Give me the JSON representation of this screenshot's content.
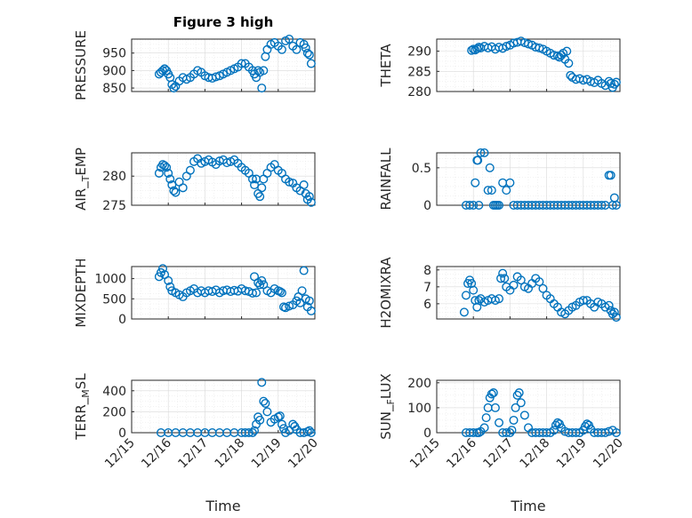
{
  "figure": {
    "title": "Figure 3 high",
    "xlabel": "Time",
    "marker_color": "#0072BD",
    "x_ticks": [
      "12/15",
      "12/16",
      "12/17",
      "12/18",
      "12/19",
      "12/20"
    ]
  },
  "chart_data": [
    {
      "type": "scatter",
      "ylabel": "PRESSURE",
      "ylim": [
        840,
        990
      ],
      "yticks": [
        850,
        900,
        950
      ],
      "series": [
        {
          "x": [
            15.75,
            15.8,
            15.85,
            15.9,
            15.95,
            16.0,
            16.05,
            16.1,
            16.15,
            16.2,
            16.3,
            16.4,
            16.5,
            16.6,
            16.7,
            16.8,
            16.9,
            17.0,
            17.1,
            17.2,
            17.3,
            17.4,
            17.5,
            17.6,
            17.7,
            17.8,
            17.9,
            18.0,
            18.1,
            18.2,
            18.3,
            18.35,
            18.4,
            18.45,
            18.5,
            18.55,
            18.6,
            18.65,
            18.7,
            18.8,
            18.9,
            19.0,
            19.1,
            19.2,
            19.3,
            19.4,
            19.5,
            19.6,
            19.7,
            19.75,
            19.8,
            19.85,
            19.9
          ],
          "y": [
            890,
            895,
            900,
            905,
            900,
            890,
            880,
            860,
            850,
            855,
            870,
            880,
            875,
            880,
            890,
            900,
            895,
            885,
            880,
            878,
            882,
            885,
            890,
            895,
            900,
            905,
            910,
            920,
            920,
            910,
            900,
            890,
            880,
            900,
            895,
            850,
            900,
            940,
            960,
            975,
            980,
            970,
            960,
            985,
            990,
            970,
            960,
            980,
            975,
            965,
            950,
            945,
            920
          ]
        }
      ]
    },
    {
      "type": "scatter",
      "ylabel": "THETA",
      "ylim": [
        280,
        293
      ],
      "yticks": [
        280,
        285,
        290
      ],
      "series": [
        {
          "x": [
            15.95,
            16.0,
            16.05,
            16.1,
            16.15,
            16.2,
            16.3,
            16.4,
            16.5,
            16.6,
            16.7,
            16.8,
            16.9,
            17.0,
            17.1,
            17.2,
            17.3,
            17.4,
            17.5,
            17.6,
            17.7,
            17.8,
            17.9,
            18.0,
            18.1,
            18.2,
            18.3,
            18.35,
            18.4,
            18.45,
            18.5,
            18.55,
            18.6,
            18.65,
            18.7,
            18.8,
            18.9,
            19.0,
            19.1,
            19.2,
            19.3,
            19.4,
            19.5,
            19.6,
            19.7,
            19.75,
            19.8,
            19.85,
            19.9
          ],
          "y": [
            290.2,
            290.5,
            290.3,
            290.6,
            291,
            290.8,
            291.2,
            290.8,
            291.1,
            290.5,
            291,
            290.7,
            291.2,
            291.5,
            292,
            292.2,
            292.5,
            292.1,
            291.8,
            291.5,
            291,
            290.8,
            290.5,
            290,
            289.5,
            289,
            288.8,
            288.5,
            289,
            289.5,
            288,
            290,
            287,
            284,
            283.5,
            283,
            283.2,
            282.8,
            283,
            282.5,
            282.2,
            282.8,
            282,
            281.5,
            282.5,
            282,
            281,
            281.8,
            282.3
          ]
        }
      ]
    },
    {
      "type": "scatter",
      "ylabel": "AIR_TEMP",
      "ylim": [
        275,
        284
      ],
      "yticks": [
        275,
        280
      ],
      "series": [
        {
          "x": [
            15.75,
            15.8,
            15.85,
            15.9,
            15.95,
            16.0,
            16.05,
            16.1,
            16.15,
            16.2,
            16.3,
            16.4,
            16.5,
            16.6,
            16.7,
            16.8,
            16.9,
            17.0,
            17.1,
            17.2,
            17.3,
            17.4,
            17.5,
            17.6,
            17.7,
            17.8,
            17.9,
            18.0,
            18.1,
            18.2,
            18.3,
            18.35,
            18.4,
            18.45,
            18.5,
            18.55,
            18.6,
            18.7,
            18.8,
            18.9,
            19.0,
            19.1,
            19.2,
            19.3,
            19.4,
            19.5,
            19.6,
            19.7,
            19.75,
            19.8,
            19.85,
            19.9
          ],
          "y": [
            280.5,
            281.5,
            282,
            281.8,
            281.5,
            280.5,
            279.5,
            278.5,
            277.5,
            277.2,
            279,
            278,
            280,
            281,
            282.5,
            283,
            282.2,
            282.5,
            282.8,
            282.4,
            282,
            282.6,
            282.8,
            282.3,
            282.5,
            282.8,
            282.2,
            281.5,
            281,
            280.5,
            279.5,
            278.5,
            279.5,
            277,
            276.5,
            278,
            279.5,
            280.5,
            281.5,
            282,
            281,
            280.5,
            279.5,
            279,
            278.8,
            278,
            277.5,
            278.5,
            277,
            276,
            276.5,
            275.5
          ]
        }
      ]
    },
    {
      "type": "scatter",
      "ylabel": "RAINFALL",
      "ylim": [
        0,
        0.7
      ],
      "yticks": [
        0,
        0.5
      ],
      "series": [
        {
          "x": [
            15.8,
            15.9,
            16.0,
            16.05,
            16.1,
            16.12,
            16.15,
            16.2,
            16.3,
            16.4,
            16.45,
            16.5,
            16.55,
            16.6,
            16.65,
            16.7,
            16.8,
            16.9,
            17.0,
            17.1,
            17.2,
            17.3,
            17.4,
            17.5,
            17.6,
            17.7,
            17.8,
            17.9,
            18.0,
            18.1,
            18.2,
            18.3,
            18.4,
            18.5,
            18.6,
            18.7,
            18.8,
            18.9,
            19.0,
            19.1,
            19.2,
            19.3,
            19.4,
            19.5,
            19.6,
            19.7,
            19.75,
            19.8,
            19.85,
            19.9
          ],
          "y": [
            0,
            0,
            0,
            0.3,
            0.6,
            0.6,
            0,
            0.7,
            0.7,
            0.2,
            0.5,
            0.2,
            0,
            0,
            0,
            0,
            0.3,
            0.2,
            0.3,
            0,
            0,
            0,
            0,
            0,
            0,
            0,
            0,
            0,
            0,
            0,
            0,
            0,
            0,
            0,
            0,
            0,
            0,
            0,
            0,
            0,
            0,
            0,
            0,
            0,
            0,
            0.4,
            0.4,
            0,
            0.1,
            0
          ]
        }
      ]
    },
    {
      "type": "scatter",
      "ylabel": "MIXDEPTH",
      "ylim": [
        0,
        1300
      ],
      "yticks": [
        0,
        500,
        1000
      ],
      "series": [
        {
          "x": [
            15.75,
            15.8,
            15.85,
            15.9,
            16.0,
            16.05,
            16.1,
            16.2,
            16.3,
            16.4,
            16.5,
            16.6,
            16.7,
            16.8,
            16.9,
            17.0,
            17.1,
            17.2,
            17.3,
            17.4,
            17.5,
            17.6,
            17.7,
            17.8,
            17.9,
            18.0,
            18.1,
            18.2,
            18.3,
            18.35,
            18.4,
            18.45,
            18.5,
            18.55,
            18.6,
            18.7,
            18.8,
            18.9,
            19.0,
            19.05,
            19.1,
            19.15,
            19.2,
            19.3,
            19.4,
            19.5,
            19.55,
            19.6,
            19.65,
            19.7,
            19.75,
            19.8,
            19.85,
            19.9
          ],
          "y": [
            1050,
            1150,
            1250,
            1100,
            950,
            800,
            700,
            650,
            600,
            550,
            650,
            700,
            750,
            650,
            700,
            650,
            700,
            680,
            720,
            650,
            700,
            720,
            680,
            710,
            690,
            750,
            700,
            680,
            640,
            1050,
            650,
            900,
            850,
            950,
            850,
            700,
            650,
            750,
            700,
            680,
            650,
            300,
            280,
            320,
            350,
            450,
            550,
            400,
            700,
            1200,
            500,
            300,
            450,
            200
          ]
        }
      ]
    },
    {
      "type": "scatter",
      "ylabel": "H2OMIXRA",
      "ylim": [
        5.1,
        8.2
      ],
      "yticks": [
        6,
        7,
        8
      ],
      "series": [
        {
          "x": [
            15.75,
            15.8,
            15.85,
            15.9,
            15.95,
            16.0,
            16.05,
            16.1,
            16.15,
            16.2,
            16.3,
            16.4,
            16.5,
            16.6,
            16.7,
            16.75,
            16.8,
            16.85,
            16.9,
            17.0,
            17.1,
            17.2,
            17.3,
            17.4,
            17.5,
            17.6,
            17.7,
            17.8,
            17.9,
            18.0,
            18.1,
            18.2,
            18.3,
            18.4,
            18.5,
            18.6,
            18.7,
            18.8,
            18.9,
            19.0,
            19.1,
            19.2,
            19.3,
            19.4,
            19.5,
            19.6,
            19.7,
            19.75,
            19.8,
            19.85,
            19.9
          ],
          "y": [
            5.5,
            6.5,
            7.2,
            7.4,
            7.2,
            6.8,
            6.2,
            5.8,
            6.2,
            6.3,
            6.1,
            6.2,
            6.3,
            6.2,
            6.3,
            7.5,
            7.8,
            7.5,
            7.0,
            6.8,
            7.1,
            7.6,
            7.4,
            7.0,
            6.9,
            7.2,
            7.5,
            7.3,
            6.9,
            6.5,
            6.3,
            6.0,
            5.8,
            5.5,
            5.4,
            5.6,
            5.8,
            5.9,
            6.1,
            6.2,
            6.2,
            6.0,
            5.8,
            6.1,
            6.0,
            5.8,
            5.9,
            5.6,
            5.4,
            5.5,
            5.2
          ]
        }
      ]
    },
    {
      "type": "scatter",
      "ylabel": "TERR_MSL",
      "ylim": [
        0,
        500
      ],
      "yticks": [
        0,
        200,
        400
      ],
      "series": [
        {
          "x": [
            15.8,
            16.0,
            16.2,
            16.4,
            16.6,
            16.8,
            17.0,
            17.2,
            17.4,
            17.6,
            17.8,
            18.0,
            18.1,
            18.2,
            18.3,
            18.35,
            18.4,
            18.45,
            18.5,
            18.55,
            18.6,
            18.65,
            18.7,
            18.8,
            18.9,
            19.0,
            19.05,
            19.1,
            19.15,
            19.2,
            19.3,
            19.4,
            19.45,
            19.5,
            19.6,
            19.7,
            19.8,
            19.85,
            19.9
          ],
          "y": [
            0,
            0,
            0,
            0,
            0,
            0,
            0,
            0,
            0,
            0,
            0,
            0,
            0,
            0,
            0,
            20,
            80,
            150,
            120,
            480,
            300,
            280,
            200,
            100,
            130,
            150,
            160,
            80,
            40,
            0,
            20,
            80,
            60,
            30,
            0,
            0,
            10,
            20,
            0
          ]
        }
      ]
    },
    {
      "type": "scatter",
      "ylabel": "SUN_FLUX",
      "ylim": [
        0,
        210
      ],
      "yticks": [
        0,
        100,
        200
      ],
      "series": [
        {
          "x": [
            15.8,
            15.9,
            16.0,
            16.1,
            16.15,
            16.2,
            16.3,
            16.35,
            16.4,
            16.45,
            16.5,
            16.55,
            16.6,
            16.7,
            16.8,
            16.9,
            17.0,
            17.05,
            17.1,
            17.15,
            17.2,
            17.25,
            17.3,
            17.4,
            17.5,
            17.6,
            17.7,
            17.8,
            17.9,
            18.0,
            18.1,
            18.2,
            18.25,
            18.3,
            18.35,
            18.4,
            18.5,
            18.6,
            18.7,
            18.8,
            18.9,
            19.0,
            19.05,
            19.1,
            19.15,
            19.2,
            19.3,
            19.4,
            19.5,
            19.6,
            19.7,
            19.8,
            19.9
          ],
          "y": [
            0,
            0,
            0,
            0,
            0,
            5,
            20,
            60,
            100,
            140,
            155,
            160,
            100,
            40,
            0,
            0,
            0,
            10,
            50,
            100,
            150,
            160,
            120,
            70,
            20,
            0,
            0,
            0,
            0,
            0,
            0,
            10,
            30,
            40,
            35,
            20,
            5,
            0,
            0,
            0,
            0,
            10,
            25,
            35,
            30,
            15,
            0,
            0,
            0,
            0,
            5,
            10,
            0
          ]
        }
      ]
    }
  ]
}
